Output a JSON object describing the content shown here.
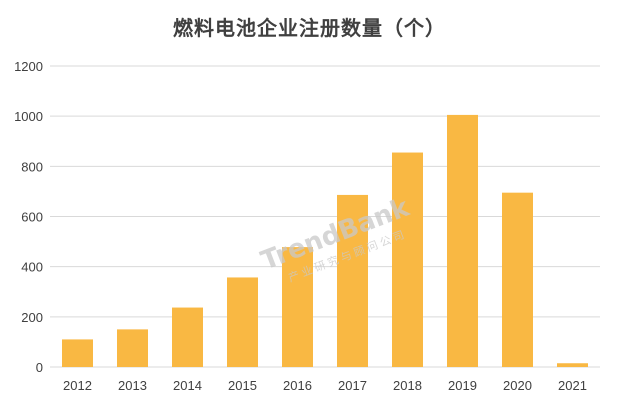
{
  "chart_data": {
    "type": "bar",
    "title": "燃料电池企业注册数量（个）",
    "categories": [
      "2012",
      "2013",
      "2014",
      "2015",
      "2016",
      "2017",
      "2018",
      "2019",
      "2020",
      "2021"
    ],
    "values": [
      110,
      150,
      237,
      357,
      478,
      686,
      855,
      1005,
      695,
      15
    ],
    "ylim": [
      0,
      1200
    ],
    "yticks": [
      0,
      200,
      400,
      600,
      800,
      1000,
      1200
    ],
    "grid": true,
    "bar_color": "#F9B843",
    "grid_color": "#d9d9d9"
  },
  "watermark": {
    "main": "TrendBank",
    "sub": "产业研究与顾问公司"
  }
}
